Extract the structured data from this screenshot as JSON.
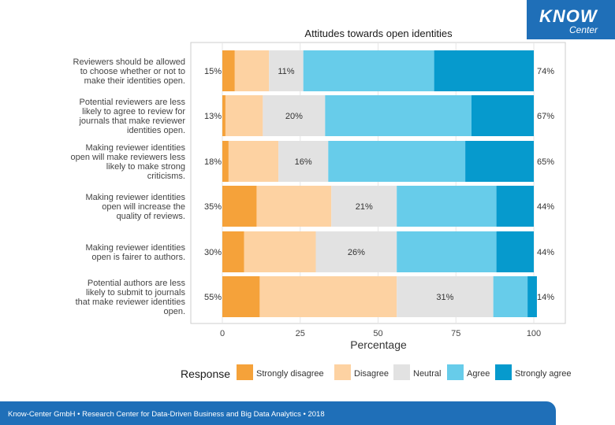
{
  "logo": {
    "word1": "KNOW",
    "word2": "Center"
  },
  "footer": {
    "text": "Know-Center GmbH • Research Center for Data-Driven Business and Big Data Analytics • 2018"
  },
  "chart_data": {
    "type": "bar",
    "orientation": "horizontal",
    "stacked": true,
    "title": "Attitudes towards open identities",
    "xlabel": "Percentage",
    "ylabel": "",
    "xlim": [
      0,
      100
    ],
    "xticks": [
      "0",
      "25",
      "50",
      "75",
      "100"
    ],
    "grid": true,
    "legend_position": "bottom",
    "legend_title": "Response",
    "categories": [
      [
        "Reviewers should be allowed",
        "to choose whether or not to",
        "make their identities open."
      ],
      [
        "Potential reviewers are less",
        "likely to agree to review for",
        "journals that make reviewer",
        "identities open."
      ],
      [
        "Making reviewer identities",
        "open will make reviewers less",
        "likely to make strong",
        "criticisms."
      ],
      [
        "Making reviewer identities",
        "open will increase the",
        "quality of reviews."
      ],
      [
        "Making reviewer identities",
        "open is fairer to authors."
      ],
      [
        "Potential authors are less",
        "likely to submit to journals",
        "that make reviewer identities",
        "open."
      ]
    ],
    "series": [
      {
        "name": "Strongly disagree",
        "color": "#F5A23A",
        "values": [
          4,
          1,
          2,
          11,
          7,
          12
        ]
      },
      {
        "name": "Disagree",
        "color": "#FDD2A2",
        "values": [
          11,
          12,
          16,
          24,
          23,
          44
        ]
      },
      {
        "name": "Neutral",
        "color": "#E2E2E2",
        "values": [
          11,
          20,
          16,
          21,
          26,
          31
        ]
      },
      {
        "name": "Agree",
        "color": "#67CCEA",
        "values": [
          42,
          47,
          44,
          32,
          32,
          11
        ]
      },
      {
        "name": "Strongly agree",
        "color": "#069ACD",
        "values": [
          32,
          20,
          22,
          12,
          12,
          3
        ]
      }
    ],
    "left_labels": [
      "15%",
      "13%",
      "18%",
      "35%",
      "30%",
      "55%"
    ],
    "center_labels": [
      "11%",
      "20%",
      "16%",
      "21%",
      "26%",
      "31%"
    ],
    "right_labels": [
      "74%",
      "67%",
      "65%",
      "44%",
      "44%",
      "14%"
    ]
  }
}
